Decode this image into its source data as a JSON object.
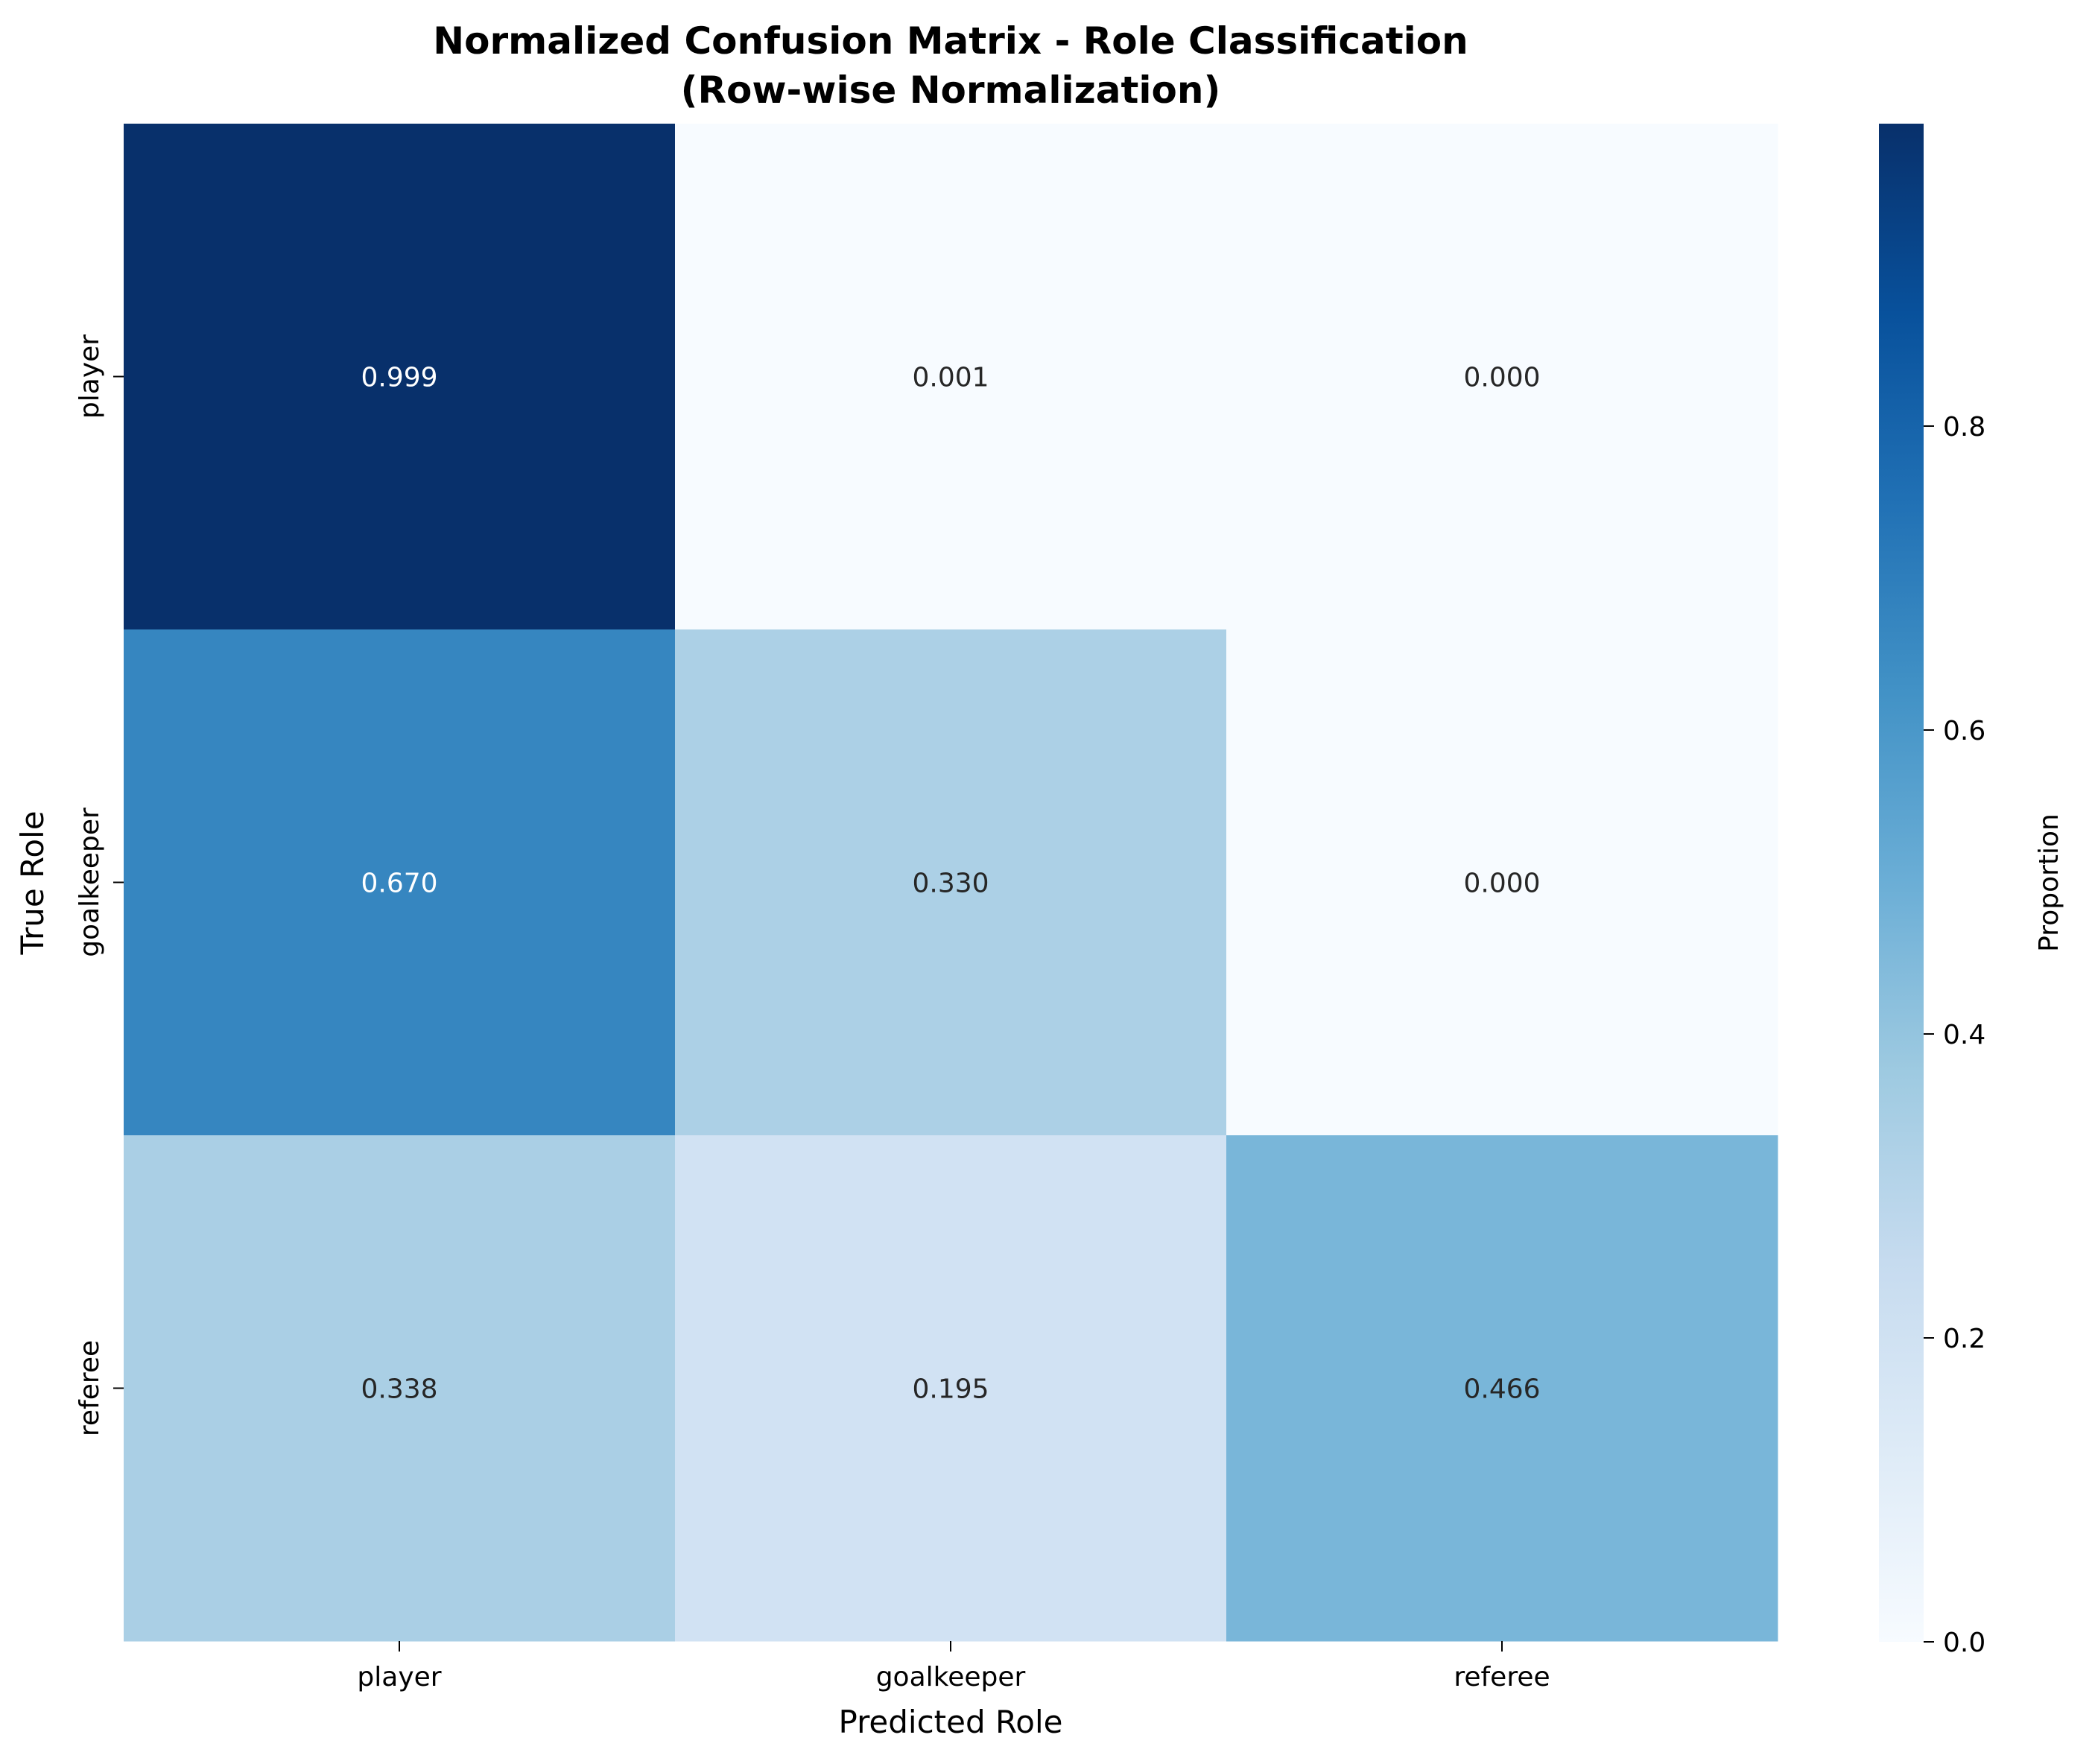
{
  "chart_data": {
    "type": "heatmap",
    "title": "Normalized Confusion Matrix - Role Classification",
    "subtitle": "(Row-wise Normalization)",
    "xlabel": "Predicted Role",
    "ylabel": "True Role",
    "x_categories": [
      "player",
      "goalkeeper",
      "referee"
    ],
    "y_categories": [
      "player",
      "goalkeeper",
      "referee"
    ],
    "values": [
      [
        0.999,
        0.001,
        0.0
      ],
      [
        0.67,
        0.33,
        0.0
      ],
      [
        0.338,
        0.195,
        0.466
      ]
    ],
    "value_labels": [
      [
        "0.999",
        "0.001",
        "0.000"
      ],
      [
        "0.670",
        "0.330",
        "0.000"
      ],
      [
        "0.338",
        "0.195",
        "0.466"
      ]
    ],
    "colormap": "Blues",
    "colorbar": {
      "label": "Proportion",
      "range": [
        0.0,
        0.999
      ],
      "ticks": [
        0.0,
        0.2,
        0.4,
        0.6,
        0.8
      ],
      "tick_labels": [
        "0.0",
        "0.2",
        "0.4",
        "0.6",
        "0.8"
      ]
    },
    "grid": false
  }
}
